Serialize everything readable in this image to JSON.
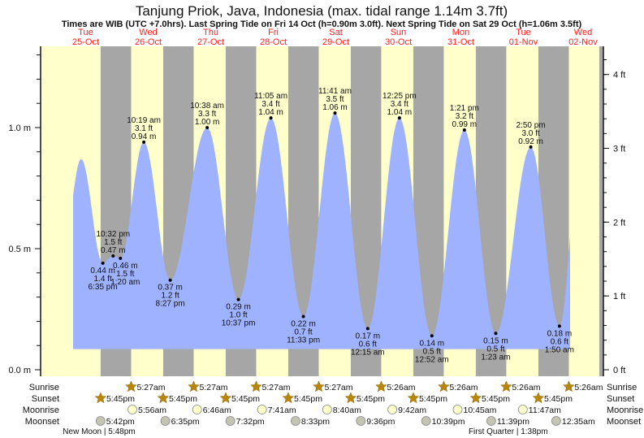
{
  "chart_data": {
    "type": "area",
    "title": "Tanjung Priok, Java, Indonesia (max. tidal range 1.14m 3.7ft)",
    "subtitle": "Times are WIB (UTC +7.0hrs). Last Spring Tide on Fri 14 Oct (h=0.90m 3.0ft). Next Spring Tide on Sat 29 Oct (h=1.06m 3.5ft)",
    "days": [
      {
        "dow": "Tue",
        "date": "25-Oct"
      },
      {
        "dow": "Wed",
        "date": "26-Oct"
      },
      {
        "dow": "Thu",
        "date": "27-Oct"
      },
      {
        "dow": "Fri",
        "date": "28-Oct"
      },
      {
        "dow": "Sat",
        "date": "29-Oct"
      },
      {
        "dow": "Sun",
        "date": "30-Oct"
      },
      {
        "dow": "Mon",
        "date": "31-Oct"
      },
      {
        "dow": "Tue",
        "date": "01-Nov"
      },
      {
        "dow": "Wed",
        "date": "02-Nov"
      }
    ],
    "y_left": {
      "unit": "m",
      "ylim": [
        0,
        1.35
      ],
      "ticks": [
        "0.0 m",
        "0.5 m",
        "1.0 m"
      ],
      "tick_values": [
        0,
        0.5,
        1.0
      ]
    },
    "y_right": {
      "unit": "ft",
      "ticks": [
        "0 ft",
        "1 ft",
        "2 ft",
        "3 ft",
        "4 ft"
      ],
      "tick_values": [
        0,
        1,
        2,
        3,
        4
      ]
    },
    "curve_floor_m": 0.085,
    "curve_start": {
      "date": "25-Oct",
      "time": "7:10 am",
      "m": 0.72
    },
    "curve_end": {
      "date": "02-Nov",
      "time": "5:55 am",
      "m": 0.55
    },
    "extremes": [
      {
        "type": "high",
        "date": "25-Oct",
        "time": "10:15 am",
        "m": 0.87,
        "labeled": false
      },
      {
        "type": "low",
        "date": "25-Oct",
        "time": "6:35 pm",
        "m": 0.44,
        "m_label": "0.44 m",
        "ft_label": "1.4 ft",
        "labeled": true
      },
      {
        "type": "high",
        "date": "25-Oct",
        "time": "10:32 pm",
        "m": 0.47,
        "m_label": "0.47 m",
        "ft_label": "1.5 ft",
        "labeled": true
      },
      {
        "type": "low",
        "date": "26-Oct",
        "time": "1:20 am",
        "m": 0.46,
        "m_label": "0.46 m",
        "ft_label": "1.5 ft",
        "labeled": true
      },
      {
        "type": "high",
        "date": "26-Oct",
        "time": "10:19 am",
        "m": 0.94,
        "m_label": "0.94 m",
        "ft_label": "3.1 ft",
        "labeled": true
      },
      {
        "type": "low",
        "date": "26-Oct",
        "time": "8:27 pm",
        "m": 0.37,
        "m_label": "0.37 m",
        "ft_label": "1.2 ft",
        "labeled": true
      },
      {
        "type": "high",
        "date": "27-Oct",
        "time": "10:38 am",
        "m": 1.0,
        "m_label": "1.00 m",
        "ft_label": "3.3 ft",
        "labeled": true
      },
      {
        "type": "low",
        "date": "27-Oct",
        "time": "10:37 pm",
        "m": 0.29,
        "m_label": "0.29 m",
        "ft_label": "1.0 ft",
        "labeled": true
      },
      {
        "type": "high",
        "date": "28-Oct",
        "time": "11:05 am",
        "m": 1.04,
        "m_label": "1.04 m",
        "ft_label": "3.4 ft",
        "labeled": true
      },
      {
        "type": "low",
        "date": "28-Oct",
        "time": "11:33 pm",
        "m": 0.22,
        "m_label": "0.22 m",
        "ft_label": "0.7 ft",
        "labeled": true
      },
      {
        "type": "high",
        "date": "29-Oct",
        "time": "11:41 am",
        "m": 1.06,
        "m_label": "1.06 m",
        "ft_label": "3.5 ft",
        "labeled": true
      },
      {
        "type": "low",
        "date": "30-Oct",
        "time": "12:15 am",
        "m": 0.17,
        "m_label": "0.17 m",
        "ft_label": "0.6 ft",
        "labeled": true
      },
      {
        "type": "high",
        "date": "30-Oct",
        "time": "12:25 pm",
        "m": 1.04,
        "m_label": "1.04 m",
        "ft_label": "3.4 ft",
        "labeled": true
      },
      {
        "type": "low",
        "date": "31-Oct",
        "time": "12:52 am",
        "m": 0.14,
        "m_label": "0.14 m",
        "ft_label": "0.5 ft",
        "labeled": true
      },
      {
        "type": "high",
        "date": "31-Oct",
        "time": "1:21 pm",
        "m": 0.99,
        "m_label": "0.99 m",
        "ft_label": "3.2 ft",
        "labeled": true
      },
      {
        "type": "low",
        "date": "01-Nov",
        "time": "1:23 am",
        "m": 0.15,
        "m_label": "0.15 m",
        "ft_label": "0.5 ft",
        "labeled": true
      },
      {
        "type": "high",
        "date": "01-Nov",
        "time": "2:50 pm",
        "m": 0.92,
        "m_label": "0.92 m",
        "ft_label": "3.0 ft",
        "labeled": true
      },
      {
        "type": "low",
        "date": "02-Nov",
        "time": "1:50 am",
        "m": 0.18,
        "m_label": "0.18 m",
        "ft_label": "0.6 ft",
        "labeled": true
      }
    ],
    "rows": {
      "sunrise": {
        "label": "Sunrise",
        "events": [
          {
            "date": "26-Oct",
            "time": "5:27am"
          },
          {
            "date": "27-Oct",
            "time": "5:27am"
          },
          {
            "date": "28-Oct",
            "time": "5:27am"
          },
          {
            "date": "29-Oct",
            "time": "5:27am"
          },
          {
            "date": "30-Oct",
            "time": "5:26am"
          },
          {
            "date": "31-Oct",
            "time": "5:26am"
          },
          {
            "date": "01-Nov",
            "time": "5:26am"
          },
          {
            "date": "02-Nov",
            "time": "5:26am"
          }
        ]
      },
      "sunset": {
        "label": "Sunset",
        "events": [
          {
            "date": "25-Oct",
            "time": "5:45pm"
          },
          {
            "date": "26-Oct",
            "time": "5:45pm"
          },
          {
            "date": "27-Oct",
            "time": "5:45pm"
          },
          {
            "date": "28-Oct",
            "time": "5:45pm"
          },
          {
            "date": "29-Oct",
            "time": "5:45pm"
          },
          {
            "date": "30-Oct",
            "time": "5:45pm"
          },
          {
            "date": "31-Oct",
            "time": "5:45pm"
          },
          {
            "date": "01-Nov",
            "time": "5:45pm"
          }
        ]
      },
      "moonrise": {
        "label": "Moonrise",
        "events": [
          {
            "date": "26-Oct",
            "time": "5:56am"
          },
          {
            "date": "27-Oct",
            "time": "6:46am"
          },
          {
            "date": "28-Oct",
            "time": "7:41am"
          },
          {
            "date": "29-Oct",
            "time": "8:40am"
          },
          {
            "date": "30-Oct",
            "time": "9:42am"
          },
          {
            "date": "31-Oct",
            "time": "10:45am"
          },
          {
            "date": "01-Nov",
            "time": "11:47am"
          }
        ]
      },
      "moonset": {
        "label": "Moonset",
        "events": [
          {
            "date": "25-Oct",
            "time": "5:42pm"
          },
          {
            "date": "26-Oct",
            "time": "6:35pm"
          },
          {
            "date": "27-Oct",
            "time": "7:32pm"
          },
          {
            "date": "28-Oct",
            "time": "8:33pm"
          },
          {
            "date": "29-Oct",
            "time": "9:36pm"
          },
          {
            "date": "30-Oct",
            "time": "10:39pm"
          },
          {
            "date": "31-Oct",
            "time": "11:39pm"
          },
          {
            "date": "02-Nov",
            "time": "12:35am"
          }
        ]
      }
    },
    "moon_phases": [
      {
        "label": "New Moon | 5:48pm",
        "date": "25-Oct",
        "time": "5:48pm"
      },
      {
        "label": "First Quarter | 1:38pm",
        "date": "01-Nov",
        "time": "1:38pm"
      }
    ],
    "colors": {
      "day": "#ffffcc",
      "night": "#a6a6a6",
      "water": "#9fb2ff",
      "day_label": "#ff2020",
      "sun": "#b8860b",
      "moonrise": "#ffffcc",
      "moonset": "#c4c4b4"
    }
  }
}
